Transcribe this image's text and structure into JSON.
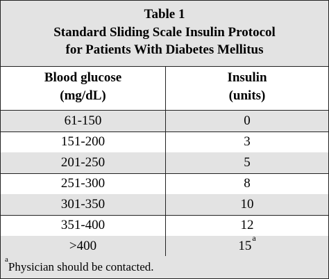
{
  "table": {
    "label": "Table 1",
    "title_line1": "Standard Sliding Scale Insulin Protocol",
    "title_line2": "for Patients With Diabetes Mellitus",
    "headers": {
      "glucose_line1": "Blood glucose",
      "glucose_line2": "(mg/dL)",
      "insulin_line1": "Insulin",
      "insulin_line2": "(units)"
    },
    "rows": [
      {
        "glucose": "61-150",
        "insulin": "0",
        "mark": ""
      },
      {
        "glucose": "151-200",
        "insulin": "3",
        "mark": ""
      },
      {
        "glucose": "201-250",
        "insulin": "5",
        "mark": ""
      },
      {
        "glucose": "251-300",
        "insulin": "8",
        "mark": ""
      },
      {
        "glucose": "301-350",
        "insulin": "10",
        "mark": ""
      },
      {
        "glucose": "351-400",
        "insulin": "12",
        "mark": ""
      },
      {
        "glucose": ">400",
        "insulin": "15",
        "mark": "a"
      }
    ],
    "footnote": {
      "mark": "a",
      "text": "Physician should be contacted."
    },
    "colors": {
      "shade": "#e3e3e3",
      "border": "#222222"
    }
  }
}
